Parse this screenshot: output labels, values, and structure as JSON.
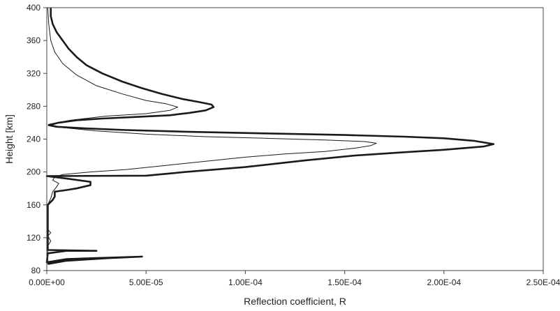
{
  "chart_data": {
    "type": "line",
    "xlabel": "Reflection coefficient, R",
    "ylabel": "Height [km]",
    "xlim": [
      0,
      0.00025
    ],
    "ylim": [
      80,
      400
    ],
    "x_ticks": [
      0,
      5e-05,
      0.0001,
      0.00015,
      0.0002,
      0.00025
    ],
    "x_tick_labels": [
      "0.00E+00",
      "5.00E-05",
      "1.00E-04",
      "1.50E-04",
      "2.00E-04",
      "2.50E-04"
    ],
    "y_ticks": [
      80,
      120,
      160,
      200,
      240,
      280,
      320,
      360,
      400
    ],
    "y_tick_labels": [
      "80",
      "120",
      "160",
      "200",
      "240",
      "280",
      "320",
      "360",
      "400"
    ],
    "grid": false,
    "legend": false,
    "series": [
      {
        "color": "#1a1a1a",
        "style": "thick",
        "points": [
          [
            5e-07,
            88
          ],
          [
            1e-05,
            92
          ],
          [
            3e-05,
            95
          ],
          [
            4.8e-05,
            97
          ],
          [
            1e-05,
            94
          ],
          [
            0,
            90
          ],
          [
            5e-07,
            101
          ],
          [
            1e-05,
            104
          ],
          [
            2.5e-05,
            104
          ],
          [
            5e-07,
            105
          ],
          [
            5e-07,
            160
          ],
          [
            3e-06,
            166
          ],
          [
            4e-06,
            170
          ],
          [
            4e-06,
            176
          ],
          [
            1e-05,
            178
          ],
          [
            1.5e-05,
            180
          ],
          [
            2.2e-05,
            184
          ],
          [
            2.2e-05,
            188
          ],
          [
            1e-05,
            192
          ],
          [
            0,
            195
          ],
          [
            5e-05,
            195.5
          ],
          [
            7e-05,
            200
          ],
          [
            8.5e-05,
            203
          ],
          [
            0.0001,
            206
          ],
          [
            0.000115,
            210
          ],
          [
            0.00013,
            214
          ],
          [
            0.000155,
            220
          ],
          [
            0.00018,
            224
          ],
          [
            0.0002,
            227
          ],
          [
            0.00022,
            231
          ],
          [
            0.000225,
            234
          ],
          [
            0.000215,
            238
          ],
          [
            0.0002,
            241
          ],
          [
            0.00018,
            243
          ],
          [
            0.00015,
            245
          ],
          [
            0.00011,
            247
          ],
          [
            7e-05,
            249
          ],
          [
            4e-05,
            251
          ],
          [
            2e-05,
            253
          ],
          [
            5e-06,
            255
          ],
          [
            1e-06,
            257
          ],
          [
            6e-06,
            260
          ],
          [
            1.5e-05,
            263
          ],
          [
            2.8e-05,
            265
          ],
          [
            4.5e-05,
            267
          ],
          [
            6.2e-05,
            269
          ],
          [
            7.2e-05,
            272
          ],
          [
            8e-05,
            275
          ],
          [
            8.4e-05,
            279
          ],
          [
            8.3e-05,
            282
          ],
          [
            7.7e-05,
            285
          ],
          [
            6.8e-05,
            289
          ],
          [
            5.8e-05,
            295
          ],
          [
            4.8e-05,
            302
          ],
          [
            3.8e-05,
            310
          ],
          [
            2.8e-05,
            320
          ],
          [
            2e-05,
            330
          ],
          [
            1.5e-05,
            340
          ],
          [
            1.1e-05,
            350
          ],
          [
            8e-06,
            360
          ],
          [
            5e-06,
            370
          ],
          [
            3e-06,
            380
          ],
          [
            2e-06,
            390
          ],
          [
            2e-06,
            400
          ]
        ]
      },
      {
        "color": "#1a1a1a",
        "style": "thin",
        "points": [
          [
            5e-07,
            88
          ],
          [
            5e-07,
            110
          ],
          [
            2e-06,
            116
          ],
          [
            5e-07,
            122
          ],
          [
            2e-06,
            126
          ],
          [
            5e-07,
            130
          ],
          [
            5e-07,
            160
          ],
          [
            2e-06,
            168
          ],
          [
            3e-06,
            176
          ],
          [
            5e-06,
            182
          ],
          [
            6e-06,
            186
          ],
          [
            3e-06,
            190
          ],
          [
            4e-06,
            194
          ],
          [
            8e-06,
            197
          ],
          [
            2.2e-05,
            200
          ],
          [
            4e-05,
            203
          ],
          [
            6e-05,
            208
          ],
          [
            8e-05,
            213
          ],
          [
            0.0001,
            218
          ],
          [
            0.00012,
            222
          ],
          [
            0.00014,
            225
          ],
          [
            0.000155,
            229
          ],
          [
            0.000163,
            232
          ],
          [
            0.000166,
            235
          ],
          [
            0.00016,
            237
          ],
          [
            0.00014,
            239
          ],
          [
            0.00011,
            241
          ],
          [
            8e-05,
            243
          ],
          [
            5e-05,
            246
          ],
          [
            2.5e-05,
            250
          ],
          [
            8e-06,
            254
          ],
          [
            1e-06,
            258
          ],
          [
            1.2e-05,
            263
          ],
          [
            3e-05,
            268
          ],
          [
            5e-05,
            271
          ],
          [
            6.2e-05,
            275
          ],
          [
            6.6e-05,
            279
          ],
          [
            6e-05,
            283
          ],
          [
            5e-05,
            287
          ],
          [
            3.8e-05,
            295
          ],
          [
            2.5e-05,
            305
          ],
          [
            1.5e-05,
            318
          ],
          [
            8e-06,
            332
          ],
          [
            4e-06,
            346
          ],
          [
            2e-06,
            360
          ],
          [
            1e-06,
            380
          ],
          [
            5e-07,
            400
          ]
        ]
      }
    ]
  }
}
